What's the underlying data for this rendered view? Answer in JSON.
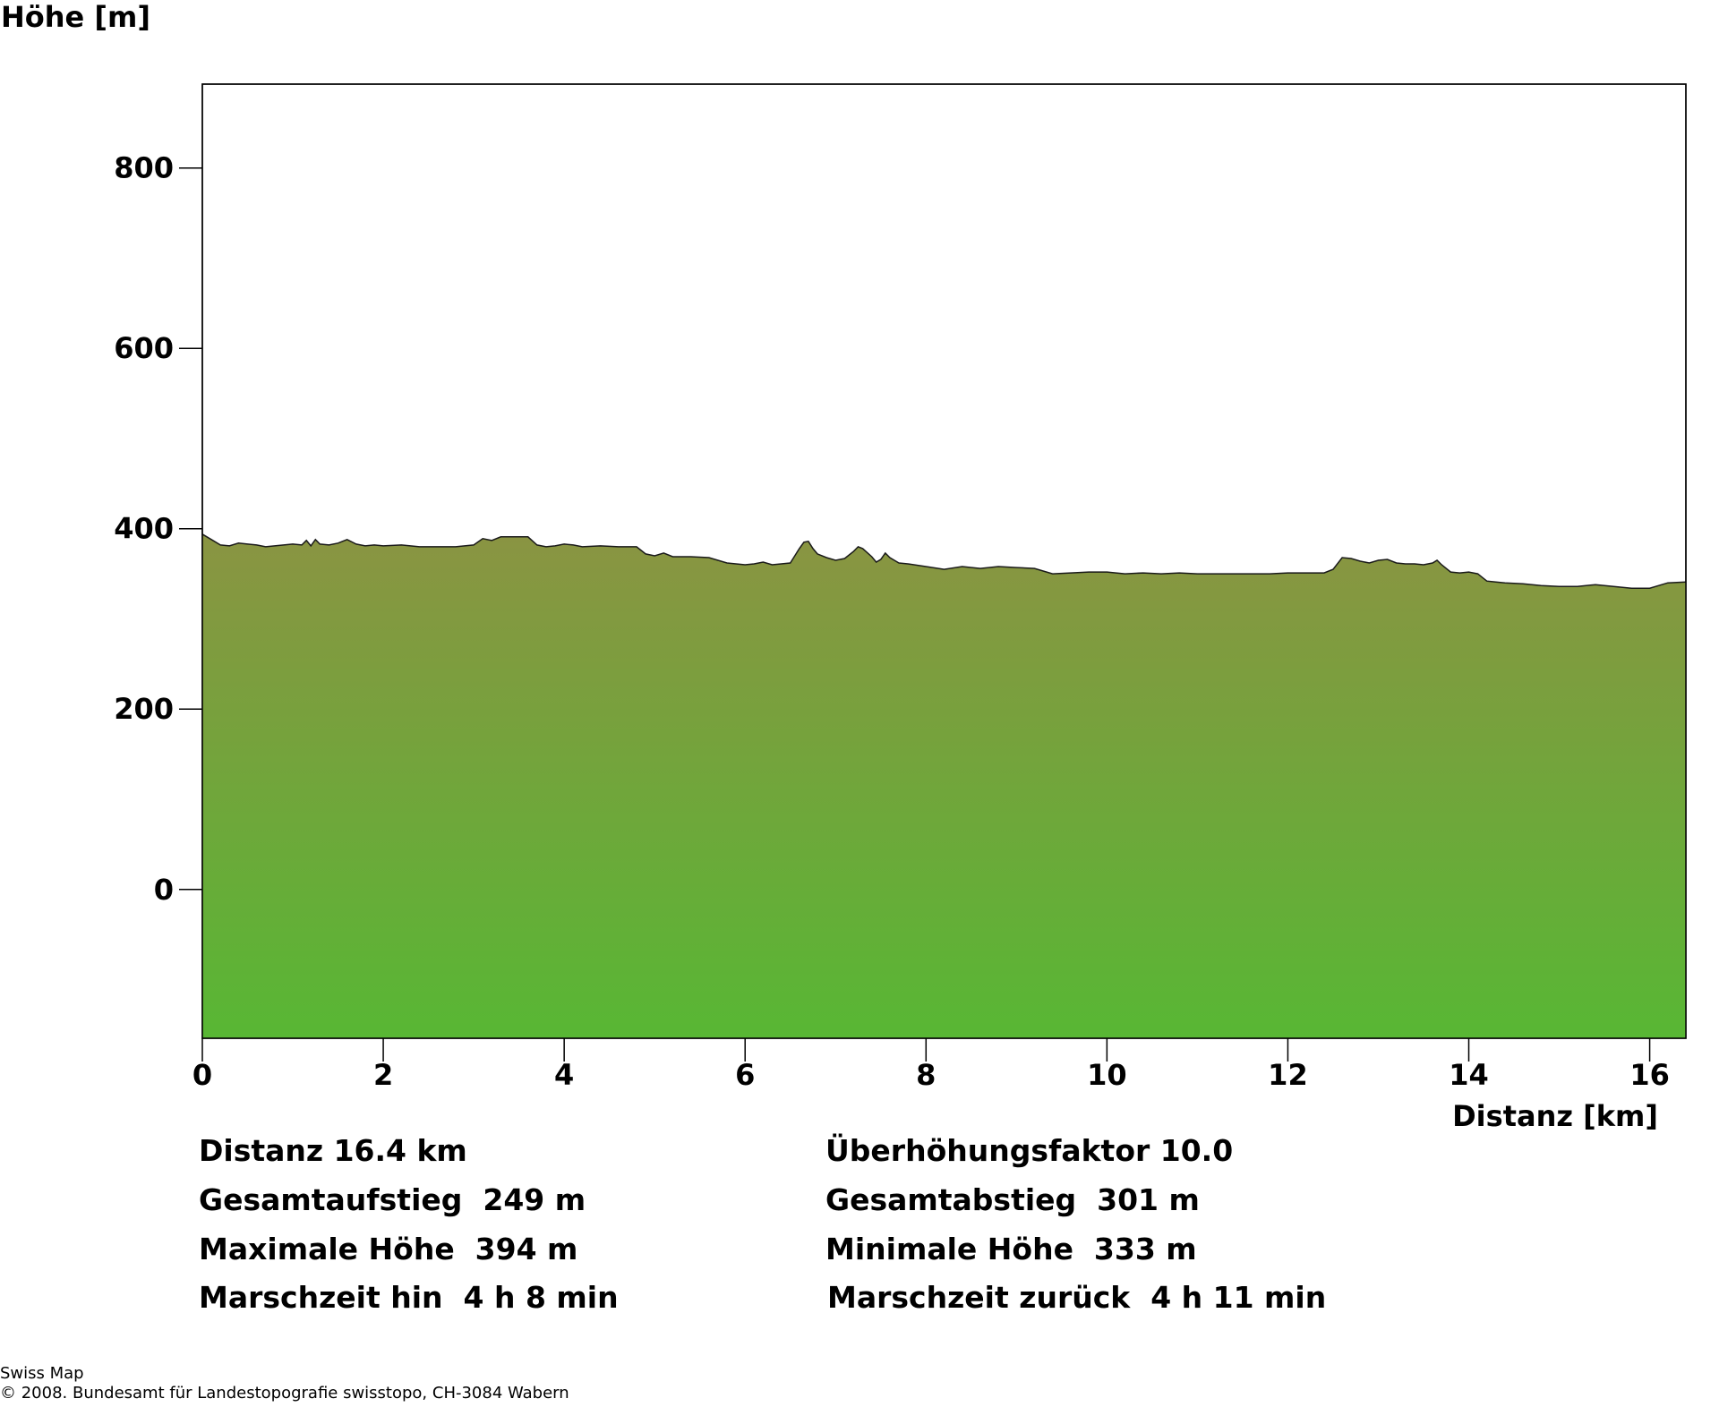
{
  "chart_data": {
    "type": "area",
    "ylabel": "Höhe [m]",
    "xlabel": "Distanz [km]",
    "xlim": [
      0,
      16.4
    ],
    "ylim": [
      -165,
      893
    ],
    "xticks": [
      0,
      2,
      4,
      6,
      8,
      10,
      12,
      14,
      16
    ],
    "yticks": [
      0,
      200,
      400,
      600,
      800
    ],
    "grid": false,
    "fill_gradient": {
      "top": "#8a9442",
      "bottom": "#58b734"
    },
    "series": [
      {
        "x": [
          0,
          0.1,
          0.2,
          0.3,
          0.4,
          0.5,
          0.6,
          0.7,
          0.8,
          0.9,
          1.0,
          1.1,
          1.15,
          1.2,
          1.25,
          1.3,
          1.4,
          1.5,
          1.6,
          1.7,
          1.8,
          1.9,
          2.0,
          2.2,
          2.4,
          2.6,
          2.8,
          3.0,
          3.1,
          3.2,
          3.3,
          3.4,
          3.5,
          3.6,
          3.7,
          3.8,
          3.9,
          4.0,
          4.1,
          4.2,
          4.4,
          4.6,
          4.8,
          4.9,
          5.0,
          5.1,
          5.2,
          5.4,
          5.6,
          5.8,
          6.0,
          6.1,
          6.2,
          6.3,
          6.4,
          6.5,
          6.6,
          6.65,
          6.7,
          6.75,
          6.8,
          6.9,
          7.0,
          7.1,
          7.2,
          7.25,
          7.3,
          7.4,
          7.45,
          7.5,
          7.55,
          7.6,
          7.65,
          7.7,
          7.8,
          8.0,
          8.2,
          8.4,
          8.6,
          8.8,
          9.0,
          9.2,
          9.4,
          9.6,
          9.8,
          10.0,
          10.2,
          10.4,
          10.6,
          10.8,
          11.0,
          11.2,
          11.4,
          11.6,
          11.8,
          12.0,
          12.2,
          12.4,
          12.5,
          12.6,
          12.7,
          12.8,
          12.9,
          13.0,
          13.1,
          13.2,
          13.3,
          13.4,
          13.5,
          13.6,
          13.65,
          13.7,
          13.8,
          13.9,
          14.0,
          14.1,
          14.2,
          14.3,
          14.4,
          14.6,
          14.8,
          15.0,
          15.2,
          15.4,
          15.5,
          15.6,
          15.8,
          16.0,
          16.2,
          16.4
        ],
        "y": [
          394,
          388,
          382,
          381,
          384,
          383,
          382,
          380,
          381,
          382,
          383,
          382,
          387,
          381,
          388,
          383,
          382,
          384,
          388,
          383,
          381,
          382,
          381,
          382,
          380,
          380,
          380,
          382,
          389,
          387,
          391,
          391,
          391,
          391,
          382,
          380,
          381,
          383,
          382,
          380,
          381,
          380,
          380,
          372,
          370,
          373,
          369,
          369,
          368,
          362,
          360,
          361,
          363,
          360,
          361,
          362,
          378,
          385,
          386,
          378,
          372,
          368,
          365,
          367,
          375,
          380,
          378,
          369,
          363,
          366,
          373,
          368,
          365,
          362,
          361,
          358,
          355,
          358,
          356,
          358,
          357,
          356,
          350,
          351,
          352,
          352,
          350,
          351,
          350,
          351,
          350,
          350,
          350,
          350,
          350,
          351,
          351,
          351,
          355,
          368,
          367,
          364,
          362,
          365,
          366,
          362,
          361,
          361,
          360,
          362,
          365,
          360,
          352,
          351,
          352,
          350,
          342,
          341,
          340,
          339,
          337,
          336,
          336,
          338,
          337,
          336,
          334,
          334,
          340,
          341
        ]
      }
    ]
  },
  "stats": {
    "distance": "Distanz 16.4 km",
    "exaggeration": "Überhöhungsfaktor 10.0",
    "ascent": "Gesamtaufstieg  249 m",
    "descent": "Gesamtabstieg  301 m",
    "max_height": "Maximale Höhe  394 m",
    "min_height": "Minimale Höhe  333 m",
    "time_out": "Marschzeit hin  4 h 8 min",
    "time_back": "Marschzeit zurück  4 h 11 min"
  },
  "credits": {
    "line1": "Swiss Map",
    "line2": "© 2008. Bundesamt für Landestopografie swisstopo, CH-3084 Wabern"
  }
}
